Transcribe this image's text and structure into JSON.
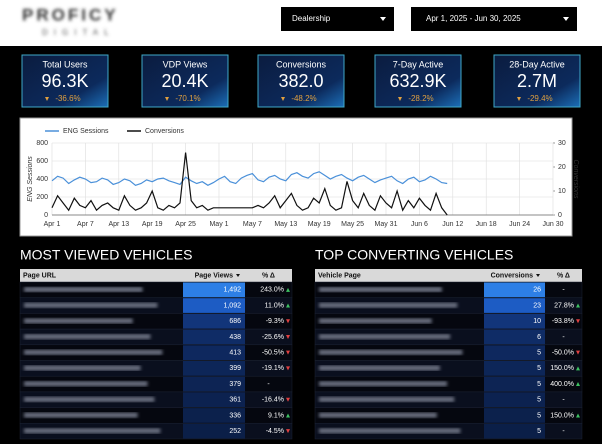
{
  "header": {
    "logo_top": "PROFICY",
    "logo_bottom": "DIGITAL",
    "filters": [
      "Dealership",
      "Apr 1, 2025 - Jun 30, 2025"
    ]
  },
  "kpis": [
    {
      "label": "Total Users",
      "value": "96.3K",
      "change": "-36.6%"
    },
    {
      "label": "VDP Views",
      "value": "20.4K",
      "change": "-70.1%"
    },
    {
      "label": "Conversions",
      "value": "382.0",
      "change": "-48.2%"
    },
    {
      "label": "7-Day Active",
      "value": "632.9K",
      "change": "-28.2%"
    },
    {
      "label": "28-Day Active",
      "value": "2.7M",
      "change": "-29.4%"
    }
  ],
  "chart_data": {
    "type": "line",
    "ylabel": "ENG Sessions",
    "y2label": "Conversions",
    "categories": [
      "Apr 1",
      null,
      null,
      null,
      null,
      null,
      "Apr 7",
      null,
      null,
      null,
      null,
      null,
      "Apr 13",
      null,
      null,
      null,
      null,
      null,
      "Apr 19",
      null,
      null,
      null,
      null,
      null,
      "Apr 25",
      null,
      null,
      null,
      null,
      null,
      "May 1",
      null,
      null,
      null,
      null,
      null,
      "May 7",
      null,
      null,
      null,
      null,
      null,
      "May 13",
      null,
      null,
      null,
      null,
      null,
      "May 19",
      null,
      null,
      null,
      null,
      null,
      "May 25",
      null,
      null,
      null,
      null,
      null,
      "May 31",
      null,
      null,
      null,
      null,
      null,
      "Jun 6",
      null,
      null,
      null,
      null,
      null,
      "Jun 12",
      null,
      null,
      null,
      null,
      null,
      "Jun 18",
      null,
      null,
      null,
      null,
      null,
      "Jun 24",
      null,
      null,
      null,
      null,
      null,
      "Jun 30"
    ],
    "series": [
      {
        "name": "ENG Sessions",
        "color": "#4a90d9",
        "values": [
          380,
          430,
          410,
          350,
          390,
          420,
          400,
          360,
          370,
          410,
          390,
          340,
          360,
          400,
          380,
          330,
          350,
          390,
          370,
          400,
          410,
          380,
          360,
          340,
          420,
          380,
          350,
          370,
          330,
          360,
          400,
          430,
          370,
          350,
          410,
          440,
          460,
          390,
          370,
          420,
          440,
          400,
          380,
          450,
          470,
          430,
          410,
          460,
          480,
          440,
          400,
          430,
          450,
          410,
          380,
          420,
          440,
          400,
          360,
          390,
          410,
          430,
          380,
          350,
          400,
          420,
          370,
          390,
          430,
          400,
          360,
          350,
          null,
          null,
          null,
          null,
          null,
          null,
          null,
          null,
          null,
          null,
          null,
          null,
          null,
          null,
          null,
          null,
          null,
          null,
          null
        ]
      },
      {
        "name": "Conversions",
        "color": "#111111",
        "axis": "y2",
        "values": [
          3,
          8,
          5,
          2,
          7,
          4,
          3,
          6,
          2,
          4,
          5,
          3,
          2,
          8,
          4,
          2,
          3,
          5,
          10,
          3,
          2,
          4,
          3,
          5,
          26,
          6,
          3,
          4,
          2,
          3,
          3,
          3,
          3,
          3,
          3,
          3,
          3,
          4,
          3,
          5,
          8,
          3,
          6,
          9,
          4,
          2,
          3,
          7,
          5,
          11,
          4,
          2,
          3,
          14,
          6,
          3,
          9,
          4,
          2,
          8,
          5,
          3,
          10,
          2,
          6,
          3,
          7,
          4,
          2,
          9,
          3,
          0,
          null,
          null,
          null,
          null,
          null,
          null,
          null,
          null,
          null,
          null,
          null,
          null,
          null,
          null,
          null,
          null,
          null,
          null,
          null
        ]
      }
    ],
    "ylim": [
      0,
      800
    ],
    "yticks": [
      0,
      200,
      400,
      600,
      800
    ],
    "y2lim": [
      0,
      30
    ],
    "y2ticks": [
      0,
      10,
      20,
      30
    ],
    "grid": true,
    "legend": "top-left"
  },
  "tables": [
    {
      "title": "MOST VIEWED VEHICLES",
      "columns": [
        "Page URL",
        "Page Views",
        "% Δ"
      ],
      "rows": [
        [
          "1,492",
          "243.0%"
        ],
        [
          "1,092",
          "11.0%"
        ],
        [
          "686",
          "-9.3%"
        ],
        [
          "438",
          "-25.6%"
        ],
        [
          "413",
          "-50.5%"
        ],
        [
          "399",
          "-19.1%"
        ],
        [
          "379",
          "-"
        ],
        [
          "361",
          "-16.4%"
        ],
        [
          "336",
          "9.1%"
        ],
        [
          "252",
          "-4.5%"
        ]
      ]
    },
    {
      "title": "TOP CONVERTING VEHICLES",
      "columns": [
        "Vehicle Page",
        "Conversions",
        "% Δ"
      ],
      "rows": [
        [
          "26",
          "-"
        ],
        [
          "23",
          "27.8%"
        ],
        [
          "10",
          "-93.8%"
        ],
        [
          "6",
          "-"
        ],
        [
          "5",
          "-50.0%"
        ],
        [
          "5",
          "150.0%"
        ],
        [
          "5",
          "400.0%"
        ],
        [
          "5",
          "-"
        ],
        [
          "5",
          "150.0%"
        ],
        [
          "5",
          "-"
        ]
      ]
    }
  ]
}
